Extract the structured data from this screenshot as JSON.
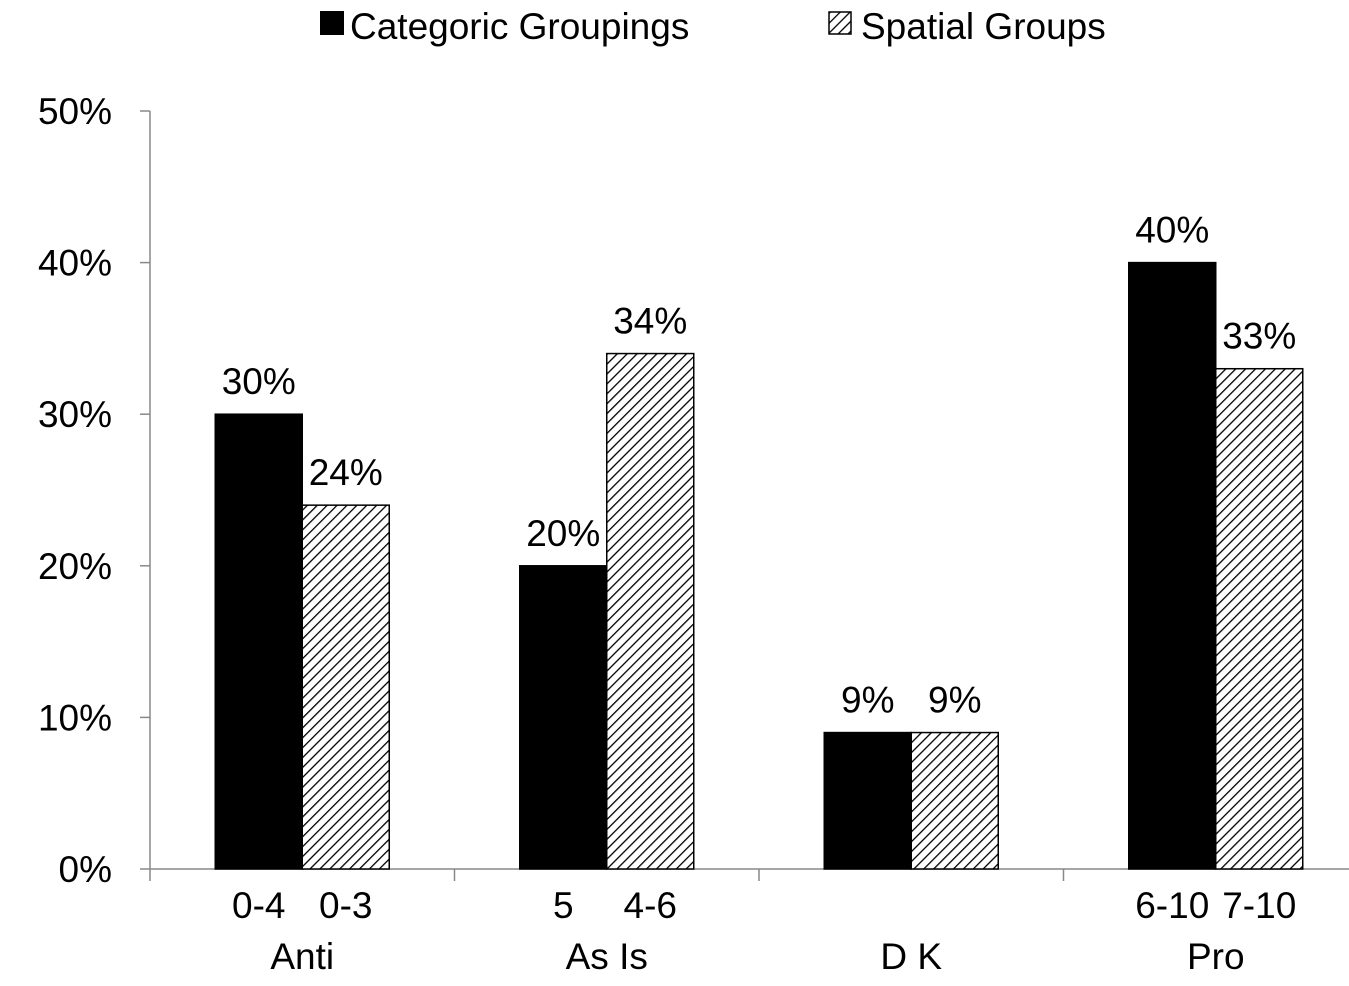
{
  "chart_data": {
    "type": "bar",
    "title": "",
    "xlabel": "",
    "ylabel": "",
    "ylim": [
      0,
      0.5
    ],
    "y_ticks": [
      "0%",
      "10%",
      "20%",
      "30%",
      "40%",
      "50%"
    ],
    "legend_position": "top",
    "grid": false,
    "categories": [
      "Anti",
      "As Is",
      "D K",
      "Pro"
    ],
    "series": [
      {
        "name": "Categoric Groupings",
        "pattern": "solid",
        "color": "#000000",
        "values": [
          0.3,
          0.2,
          0.09,
          0.4
        ],
        "data_labels": [
          "30%",
          "20%",
          "9%",
          "40%"
        ],
        "sub_labels": [
          "0-4",
          "5",
          "",
          "6-10"
        ]
      },
      {
        "name": "Spatial Groups",
        "pattern": "diagonal-hatch",
        "color": "#000000",
        "values": [
          0.24,
          0.34,
          0.09,
          0.33
        ],
        "data_labels": [
          "24%",
          "34%",
          "9%",
          "33%"
        ],
        "sub_labels": [
          "0-3",
          "4-6",
          "",
          "7-10"
        ]
      }
    ]
  }
}
